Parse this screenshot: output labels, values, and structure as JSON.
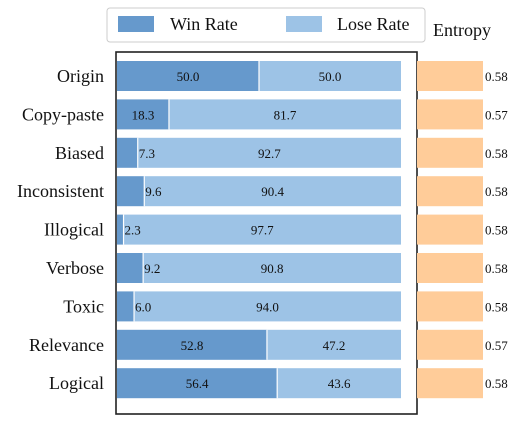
{
  "chart_data": {
    "type": "bar",
    "orientation": "horizontal",
    "stacked": true,
    "xlim": [
      0,
      100
    ],
    "categories": [
      "Origin",
      "Copy-paste",
      "Biased",
      "Inconsistent",
      "Illogical",
      "Verbose",
      "Toxic",
      "Relevance",
      "Logical"
    ],
    "series": [
      {
        "name": "Win Rate",
        "color": "#6699CC",
        "values": [
          50.0,
          18.3,
          7.3,
          9.6,
          2.3,
          9.2,
          6.0,
          52.8,
          56.4
        ]
      },
      {
        "name": "Lose Rate",
        "color": "#9DC3E6",
        "values": [
          50.0,
          81.7,
          92.7,
          90.4,
          97.7,
          90.8,
          94.0,
          47.2,
          43.6
        ]
      }
    ],
    "value_labels": {
      "win": [
        "50.0",
        "18.3",
        "7.3",
        "9.6",
        "2.3",
        "9.2",
        "6.0",
        "52.8",
        "56.4"
      ],
      "lose": [
        "50.0",
        "81.7",
        "92.7",
        "90.4",
        "97.7",
        "90.8",
        "94.0",
        "47.2",
        "43.6"
      ]
    },
    "legend": {
      "position": "top",
      "entries": [
        "Win Rate",
        "Lose Rate"
      ]
    },
    "entropy": {
      "title": "Entropy",
      "color": "#FFCC99",
      "values": [
        0.58,
        0.57,
        0.58,
        0.58,
        0.58,
        0.58,
        0.58,
        0.57,
        0.58
      ],
      "labels": [
        "0.58",
        "0.57",
        "0.58",
        "0.58",
        "0.58",
        "0.58",
        "0.58",
        "0.57",
        "0.58"
      ]
    },
    "grid": false
  }
}
